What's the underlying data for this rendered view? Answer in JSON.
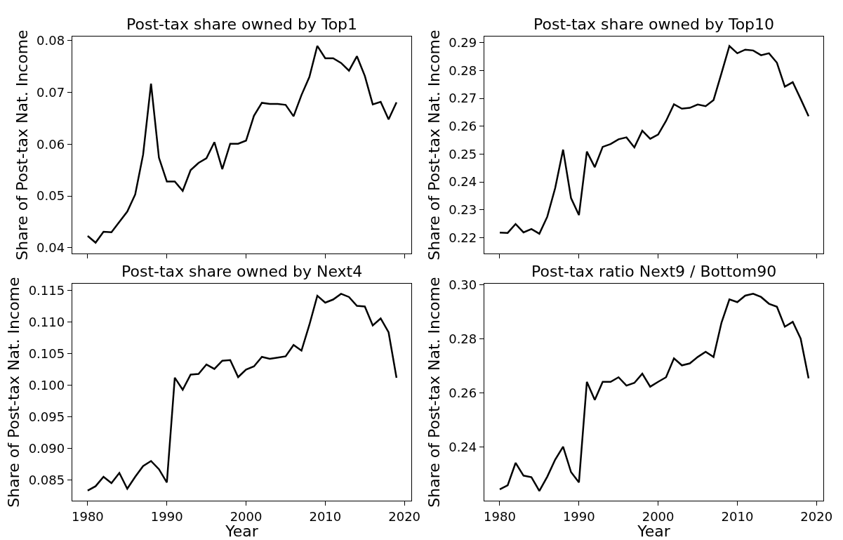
{
  "chart_data": [
    {
      "type": "line",
      "title": "Post-tax share owned by Top1",
      "ylabel": "Share of Post-tax Nat. Income",
      "color": "#000000",
      "tick_labels": "y",
      "x": [
        1980,
        1981,
        1982,
        1983,
        1984,
        1985,
        1986,
        1987,
        1988,
        1989,
        1990,
        1991,
        1992,
        1993,
        1994,
        1995,
        1996,
        1997,
        1998,
        1999,
        2000,
        2001,
        2002,
        2003,
        2004,
        2005,
        2006,
        2007,
        2008,
        2009,
        2010,
        2011,
        2012,
        2013,
        2014,
        2015,
        2016,
        2017,
        2018,
        2019
      ],
      "values": [
        0.0423,
        0.041,
        0.0431,
        0.043,
        0.045,
        0.047,
        0.0503,
        0.058,
        0.0717,
        0.0574,
        0.0528,
        0.0528,
        0.051,
        0.055,
        0.0564,
        0.0573,
        0.0604,
        0.0552,
        0.0601,
        0.0601,
        0.0607,
        0.0655,
        0.068,
        0.0678,
        0.0678,
        0.0676,
        0.0654,
        0.0695,
        0.073,
        0.079,
        0.0766,
        0.0766,
        0.0757,
        0.0742,
        0.077,
        0.0732,
        0.0677,
        0.0682,
        0.0648,
        0.0681
      ],
      "xlim": [
        1978.04,
        2020.88
      ],
      "xticks": [
        1980,
        1990,
        2000,
        2010,
        2020
      ],
      "ylim": [
        0.0389,
        0.0808
      ],
      "yticks": [
        0.04,
        0.05,
        0.06,
        0.07,
        0.08
      ]
    },
    {
      "type": "line",
      "title": "Post-tax share owned by Top10",
      "ylabel": "Share of Post-tax Nat. Income",
      "color": "#000000",
      "tick_labels": "y",
      "x": [
        1980,
        1981,
        1982,
        1983,
        1984,
        1985,
        1986,
        1987,
        1988,
        1989,
        1990,
        1991,
        1992,
        1993,
        1994,
        1995,
        1996,
        1997,
        1998,
        1999,
        2000,
        2001,
        2002,
        2003,
        2004,
        2005,
        2006,
        2007,
        2008,
        2009,
        2010,
        2011,
        2012,
        2013,
        2014,
        2015,
        2016,
        2017,
        2018,
        2019
      ],
      "values": [
        0.2218,
        0.2217,
        0.2249,
        0.2219,
        0.2231,
        0.2214,
        0.2275,
        0.2378,
        0.2516,
        0.2342,
        0.2281,
        0.2509,
        0.2453,
        0.2526,
        0.2536,
        0.2553,
        0.256,
        0.2524,
        0.2584,
        0.2555,
        0.257,
        0.2619,
        0.2679,
        0.2663,
        0.2666,
        0.2678,
        0.2672,
        0.2694,
        0.279,
        0.2888,
        0.2862,
        0.2875,
        0.2872,
        0.2855,
        0.2862,
        0.2828,
        0.2742,
        0.2758,
        0.2698,
        0.2636
      ],
      "xlim": [
        1978.04,
        2020.88
      ],
      "xticks": [
        1980,
        1990,
        2000,
        2010,
        2020
      ],
      "ylim": [
        0.2143,
        0.2922
      ],
      "yticks": [
        0.22,
        0.23,
        0.24,
        0.25,
        0.26,
        0.27,
        0.28,
        0.29
      ]
    },
    {
      "type": "line",
      "title": "Post-tax share owned by Next4",
      "xlabel": "Year",
      "ylabel": "Share of Post-tax Nat. Income",
      "color": "#000000",
      "x": [
        1980,
        1981,
        1982,
        1983,
        1984,
        1985,
        1986,
        1987,
        1988,
        1989,
        1990,
        1991,
        1992,
        1993,
        1994,
        1995,
        1996,
        1997,
        1998,
        1999,
        2000,
        2001,
        2002,
        2003,
        2004,
        2005,
        2006,
        2007,
        2008,
        2009,
        2010,
        2011,
        2012,
        2013,
        2014,
        2015,
        2016,
        2017,
        2018,
        2019
      ],
      "values": [
        0.0833,
        0.084,
        0.0855,
        0.0845,
        0.0861,
        0.0836,
        0.0855,
        0.0872,
        0.088,
        0.0867,
        0.0846,
        0.1012,
        0.0993,
        0.1017,
        0.1018,
        0.1033,
        0.1026,
        0.1039,
        0.104,
        0.1013,
        0.1025,
        0.103,
        0.1045,
        0.1042,
        0.1044,
        0.1046,
        0.1064,
        0.1055,
        0.1096,
        0.1142,
        0.1131,
        0.1136,
        0.1145,
        0.114,
        0.1126,
        0.1125,
        0.1095,
        0.1106,
        0.1084,
        0.1012
      ],
      "xlim": [
        1978.04,
        2020.88
      ],
      "xticks": [
        1980,
        1990,
        2000,
        2010,
        2020
      ],
      "ylim": [
        0.0817,
        0.1161
      ],
      "yticks": [
        0.085,
        {
          "value": 0.09,
          "label": "0.090"
        },
        0.095,
        {
          "value": 0.1,
          "label": "0.100"
        },
        0.105,
        {
          "value": 0.11,
          "label": "0.110"
        },
        0.115
      ]
    },
    {
      "type": "line",
      "title": "Post-tax ratio Next9 / Bottom90",
      "xlabel": "Year",
      "ylabel": "Share of Post-tax Nat. Income",
      "color": "#000000",
      "x": [
        1980,
        1981,
        1982,
        1983,
        1984,
        1985,
        1986,
        1987,
        1988,
        1989,
        1990,
        1991,
        1992,
        1993,
        1994,
        1995,
        1996,
        1997,
        1998,
        1999,
        2000,
        2001,
        2002,
        2003,
        2004,
        2005,
        2006,
        2007,
        2008,
        2009,
        2010,
        2011,
        2012,
        2013,
        2014,
        2015,
        2016,
        2017,
        2018,
        2019
      ],
      "values": [
        0.2244,
        0.2259,
        0.2342,
        0.2295,
        0.2289,
        0.2238,
        0.2291,
        0.2354,
        0.2402,
        0.2308,
        0.227,
        0.2642,
        0.2575,
        0.2642,
        0.2642,
        0.2659,
        0.2628,
        0.2638,
        0.2672,
        0.2624,
        0.2642,
        0.2659,
        0.2729,
        0.2703,
        0.271,
        0.2734,
        0.2753,
        0.2734,
        0.2861,
        0.2947,
        0.2937,
        0.2961,
        0.2968,
        0.2956,
        0.2931,
        0.292,
        0.2846,
        0.2864,
        0.2802,
        0.2655
      ],
      "xlim": [
        1978.04,
        2020.88
      ],
      "xticks": [
        1980,
        1990,
        2000,
        2010,
        2020
      ],
      "ylim": [
        0.2202,
        0.3005
      ],
      "yticks": [
        0.24,
        0.26,
        0.28,
        {
          "value": 0.3,
          "label": "0.30"
        }
      ]
    }
  ]
}
